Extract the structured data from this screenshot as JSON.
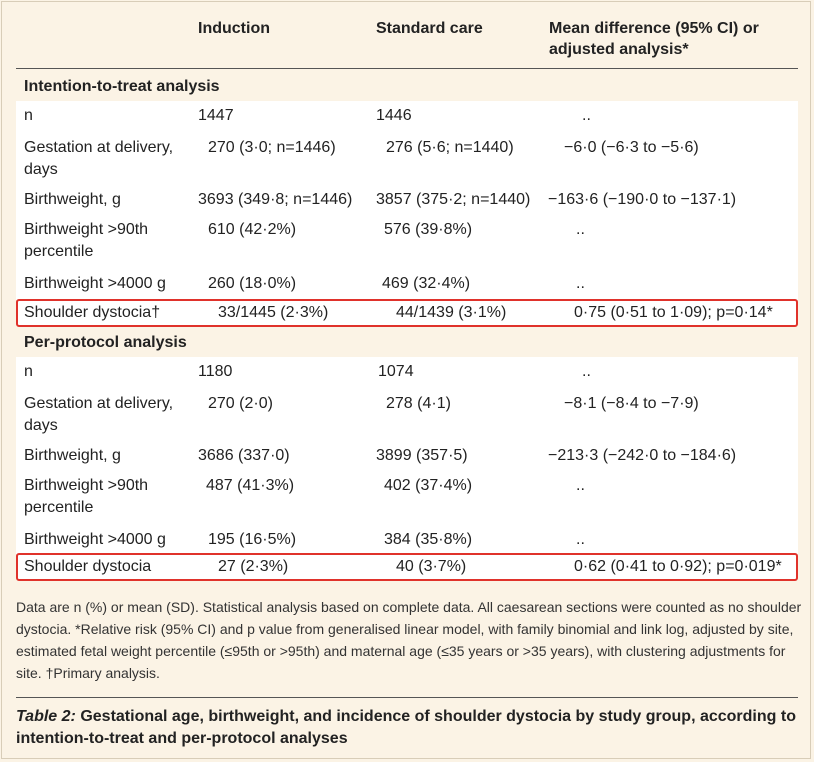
{
  "header": {
    "col_induction": "Induction",
    "col_standard": "Standard care",
    "col_mean_line1": "Mean difference (95% CI) or",
    "col_mean_line2": "adjusted analysis*"
  },
  "itt": {
    "title": "Intention-to-treat analysis",
    "rows": [
      {
        "label": "n",
        "induction": "1447",
        "standard": "1446",
        "diff": ".."
      },
      {
        "label": "Gestation at delivery, days",
        "induction": "270 (3·0; n=1446)",
        "standard": "276 (5·6; n=1440)",
        "diff": "−6·0 (−6·3 to −5·6)"
      },
      {
        "label": "Birthweight, g",
        "induction": "3693 (349·8; n=1446)",
        "standard": "3857 (375·2; n=1440)",
        "diff": "−163·6 (−190·0 to −137·1)"
      },
      {
        "label": "Birthweight >90th percentile",
        "induction": "610 (42·2%)",
        "standard": "576 (39·8%)",
        "diff": ".."
      },
      {
        "label": "Birthweight >4000 g",
        "induction": "260 (18·0%)",
        "standard": "469 (32·4%)",
        "diff": ".."
      },
      {
        "label": "Shoulder dystocia†",
        "induction": "33/1445 (2·3%)",
        "standard": "44/1439 (3·1%)",
        "diff": "0·75 (0·51 to 1·09); p=0·14*"
      }
    ]
  },
  "pp": {
    "title": "Per-protocol analysis",
    "rows": [
      {
        "label": "n",
        "induction": "1180",
        "standard": "1074",
        "diff": ".."
      },
      {
        "label": "Gestation at delivery, days",
        "induction": "270 (2·0)",
        "standard": "278 (4·1)",
        "diff": "−8·1 (−8·4 to −7·9)"
      },
      {
        "label": "Birthweight, g",
        "induction": "3686 (337·0)",
        "standard": "3899 (357·5)",
        "diff": "−213·3 (−242·0 to −184·6)"
      },
      {
        "label": "Birthweight >90th percentile",
        "induction": "487 (41·3%)",
        "standard": "402 (37·4%)",
        "diff": ".."
      },
      {
        "label": "Birthweight >4000 g",
        "induction": "195 (16·5%)",
        "standard": "384 (35·8%)",
        "diff": ".."
      },
      {
        "label": "Shoulder dystocia",
        "induction": "27 (2·3%)",
        "standard": "40 (3·7%)",
        "diff": "0·62 (0·41 to 0·92); p=0·019*"
      }
    ]
  },
  "footnote": "Data are n (%) or mean (SD). Statistical analysis based on complete data. All caesarean sections were counted as no shoulder dystocia. *Relative risk (95% CI) and p value from generalised linear model, with family binomial and link log, adjusted by site, estimated fetal weight percentile (≤95th or >95th) and maternal age (≤35 years or >35 years), with clustering adjustments for site. †Primary analysis.",
  "caption": {
    "label": "Table 2:",
    "text": " Gestational age, birthweight, and incidence of shoulder dystocia by study group, according to intention-to-treat and per-protocol analyses"
  },
  "colors": {
    "highlight": "#e0322b",
    "background": "#fbf3e5"
  }
}
